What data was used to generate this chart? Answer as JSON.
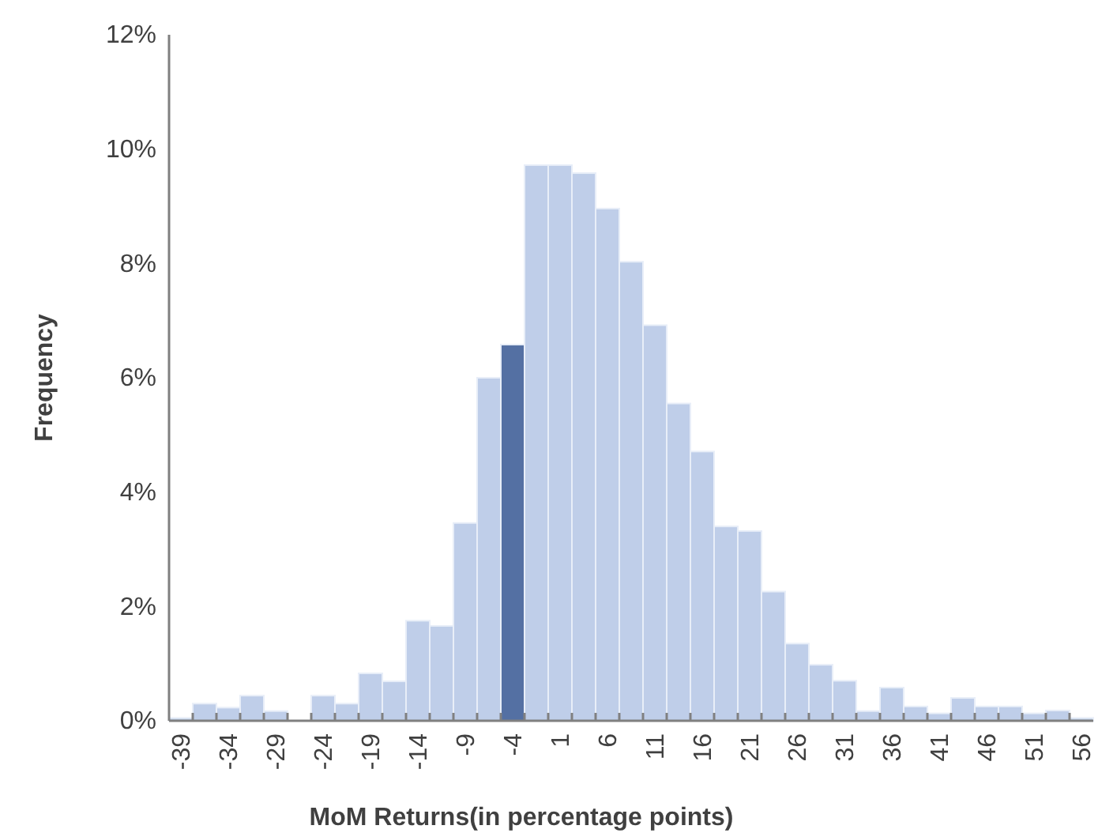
{
  "chart_data": {
    "type": "bar",
    "xlabel": "MoM Returns(in percentage points)",
    "ylabel": "Frequency",
    "categories": [
      "-39",
      null,
      "-34",
      null,
      "-29",
      null,
      "-24",
      null,
      "-19",
      null,
      "-14",
      null,
      "-9",
      null,
      "-4",
      null,
      "1",
      null,
      "6",
      null,
      "11",
      null,
      "16",
      null,
      "21",
      null,
      "26",
      null,
      "31",
      null,
      "36",
      null,
      "41",
      null,
      "46",
      null,
      "51",
      null,
      "56"
    ],
    "values": [
      0.05,
      0.3,
      0.23,
      0.44,
      0.17,
      null,
      0.44,
      0.3,
      0.83,
      0.69,
      1.75,
      1.66,
      3.46,
      6.0,
      6.58,
      9.72,
      9.72,
      9.58,
      8.96,
      8.03,
      6.92,
      5.55,
      4.71,
      3.4,
      3.32,
      2.26,
      1.35,
      0.98,
      0.7,
      0.17,
      0.58,
      0.25,
      0.13,
      0.4,
      0.25,
      0.25,
      0.13,
      0.18,
      0.05
    ],
    "colors": [
      "#bfcee9",
      "#bfcee9",
      "#bfcee9",
      "#bfcee9",
      "#bfcee9",
      null,
      "#bfcee9",
      "#bfcee9",
      "#bfcee9",
      "#bfcee9",
      "#bfcee9",
      "#bfcee9",
      "#bfcee9",
      "#bfcee9",
      "#5470a3",
      "#bfcee9",
      "#bfcee9",
      "#bfcee9",
      "#bfcee9",
      "#bfcee9",
      "#bfcee9",
      "#bfcee9",
      "#bfcee9",
      "#bfcee9",
      "#bfcee9",
      "#bfcee9",
      "#bfcee9",
      "#bfcee9",
      "#bfcee9",
      "#bfcee9",
      "#bfcee9",
      "#bfcee9",
      "#bfcee9",
      "#bfcee9",
      "#bfcee9",
      "#bfcee9",
      "#bfcee9",
      "#bfcee9",
      "#bfcee9"
    ],
    "ylim": [
      0,
      12
    ],
    "yticks": [
      {
        "value": 0,
        "label": "0%"
      },
      {
        "value": 2,
        "label": "2%"
      },
      {
        "value": 4,
        "label": "4%"
      },
      {
        "value": 6,
        "label": "6%"
      },
      {
        "value": 8,
        "label": "8%"
      },
      {
        "value": 10,
        "label": "10%"
      },
      {
        "value": 12,
        "label": "12%"
      }
    ]
  }
}
